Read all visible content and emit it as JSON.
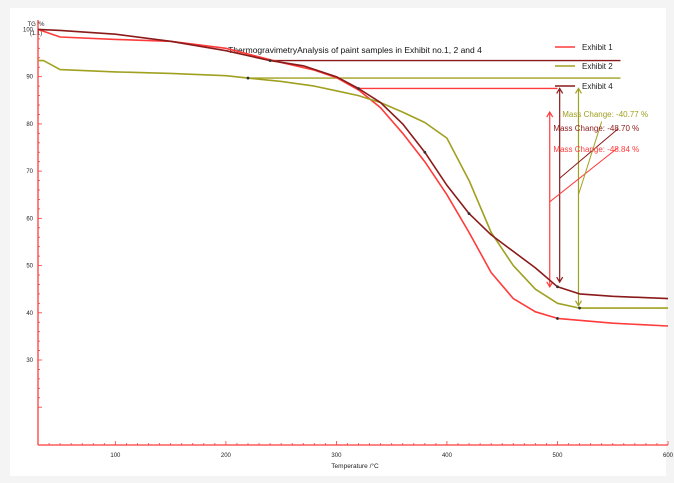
{
  "chart_data": {
    "type": "line",
    "title": "ThermogravimetryAnalysis of paint samples in Exhibit no.1, 2 and 4",
    "xlabel": "Temperature /°C",
    "ylabel": "TG /%",
    "ylabel_sub": "(1.1)",
    "xlim": [
      30,
      600
    ],
    "ylim": [
      12,
      102
    ],
    "x_ticks": [
      100,
      200,
      300,
      400,
      500,
      600
    ],
    "y_ticks": [
      30,
      40,
      50,
      60,
      70,
      80,
      90,
      100
    ],
    "grid": false,
    "legend_position": "top-right",
    "series": [
      {
        "name": "Exhibit 1",
        "color": "#ff3b3b",
        "x": [
          30,
          50,
          100,
          150,
          200,
          250,
          280,
          300,
          320,
          340,
          360,
          380,
          400,
          420,
          440,
          460,
          480,
          500,
          550,
          600
        ],
        "y": [
          100,
          98.4,
          97.9,
          97.5,
          96,
          93,
          91.4,
          89.8,
          87.2,
          83.4,
          78,
          72,
          65,
          57,
          48.5,
          43,
          40.2,
          38.8,
          37.8,
          37.2
        ]
      },
      {
        "name": "Exhibit 2",
        "color": "#a0a021",
        "x": [
          30,
          35,
          50,
          100,
          150,
          200,
          220,
          250,
          280,
          300,
          320,
          340,
          360,
          380,
          400,
          420,
          440,
          460,
          480,
          500,
          520,
          550,
          600
        ],
        "y": [
          93.4,
          93.4,
          91.5,
          91,
          90.7,
          90.2,
          89.7,
          89,
          88,
          87,
          86,
          84.5,
          82.5,
          80.3,
          77,
          68,
          57,
          50,
          45,
          42,
          41,
          41,
          41
        ]
      },
      {
        "name": "Exhibit 4",
        "color": "#8b1a1a",
        "x": [
          30,
          50,
          100,
          150,
          200,
          240,
          270,
          300,
          320,
          340,
          360,
          380,
          400,
          420,
          440,
          460,
          480,
          500,
          520,
          550,
          600
        ],
        "y": [
          100,
          99.8,
          99,
          97.5,
          95.5,
          93.4,
          92.3,
          90,
          87.5,
          84.5,
          80,
          74,
          67,
          61,
          56.5,
          53,
          49.5,
          45.5,
          44,
          43.5,
          43
        ]
      }
    ],
    "annotations": [
      {
        "text": "Mass Change: -40.77 %",
        "color": "#a0a021"
      },
      {
        "text": "Mass Change: -48.70 %",
        "color": "#8b1a1a"
      },
      {
        "text": "Mass Change: -48.84 %",
        "color": "#ff3b3b"
      }
    ]
  }
}
